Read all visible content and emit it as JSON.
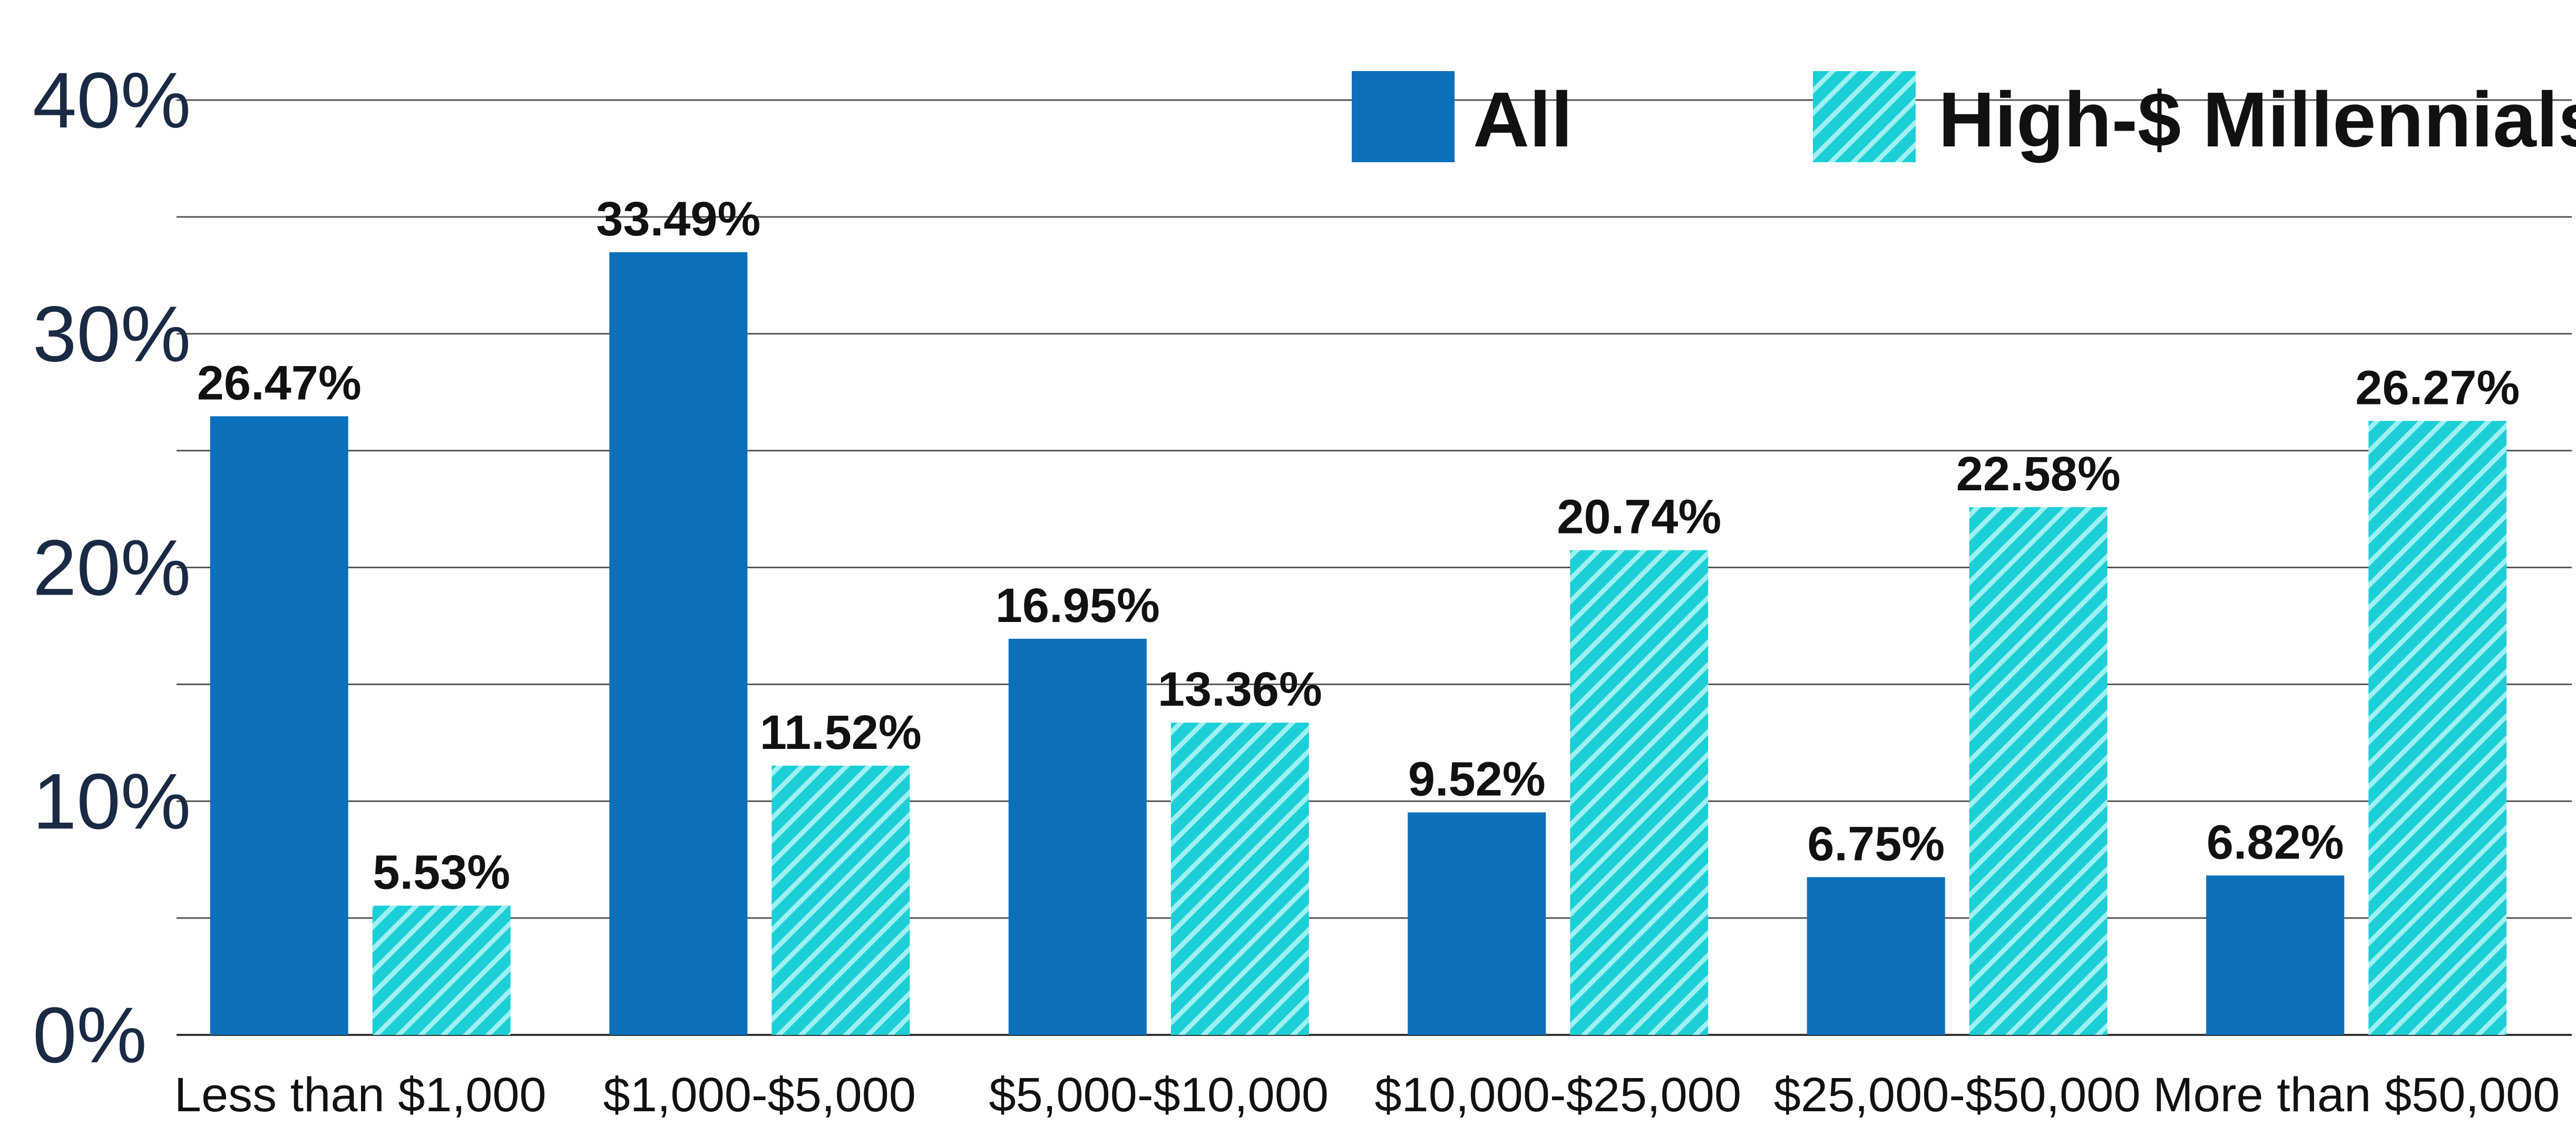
{
  "chart_data": {
    "type": "bar",
    "categories": [
      "Less than $1,000",
      "$1,000-$5,000",
      "$5,000-$10,000",
      "$10,000-$25,000",
      "$25,000-$50,000",
      "More than $50,000"
    ],
    "series": [
      {
        "name": "All",
        "values": [
          26.47,
          33.49,
          16.95,
          9.52,
          6.75,
          6.82
        ],
        "labels": [
          "26.47%",
          "33.49%",
          "16.95%",
          "9.52%",
          "6.75%",
          "6.82%"
        ],
        "color": "#0b6fba",
        "pattern": "solid"
      },
      {
        "name": "High-$ Millennials",
        "values": [
          5.53,
          11.52,
          13.36,
          20.74,
          22.58,
          26.27
        ],
        "labels": [
          "5.53%",
          "11.52%",
          "13.36%",
          "20.74%",
          "22.58%",
          "26.27%"
        ],
        "color": "#1ccfd6",
        "pattern": "diagonal-hatch"
      }
    ],
    "ylim": [
      0,
      40
    ],
    "yticks": [
      0,
      10,
      20,
      30,
      40
    ],
    "yticklabels": [
      "0%",
      "10%",
      "20%",
      "30%",
      "40%"
    ],
    "grid": true,
    "legend_position": "top-right"
  }
}
